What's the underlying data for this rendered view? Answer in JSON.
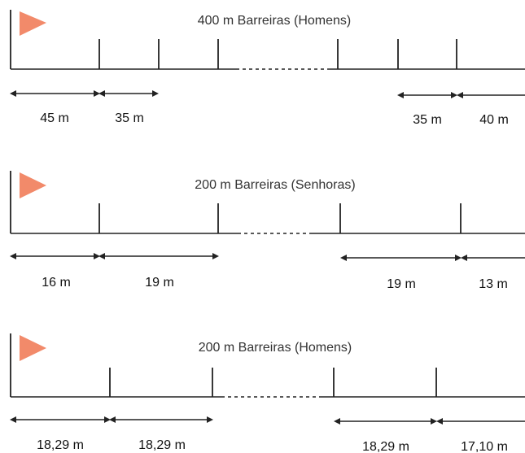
{
  "colors": {
    "flag": "#f28a6a",
    "line": "#222222",
    "text": "#333333"
  },
  "icons": {
    "start_marker": "flag-icon"
  },
  "panels": [
    {
      "title": "400 m Barreiras (Homens)",
      "first_label": "45 m",
      "between_label_left": "35 m",
      "between_label_right": "35 m",
      "last_label": "40 m"
    },
    {
      "title": "200 m Barreiras (Senhoras)",
      "first_label": "16 m",
      "between_label_left": "19 m",
      "between_label_right": "19 m",
      "last_label": "13 m"
    },
    {
      "title": "200 m Barreiras (Homens)",
      "first_label": "18,29 m",
      "between_label_left": "18,29 m",
      "between_label_right": "18,29 m",
      "last_label": "17,10 m"
    }
  ]
}
